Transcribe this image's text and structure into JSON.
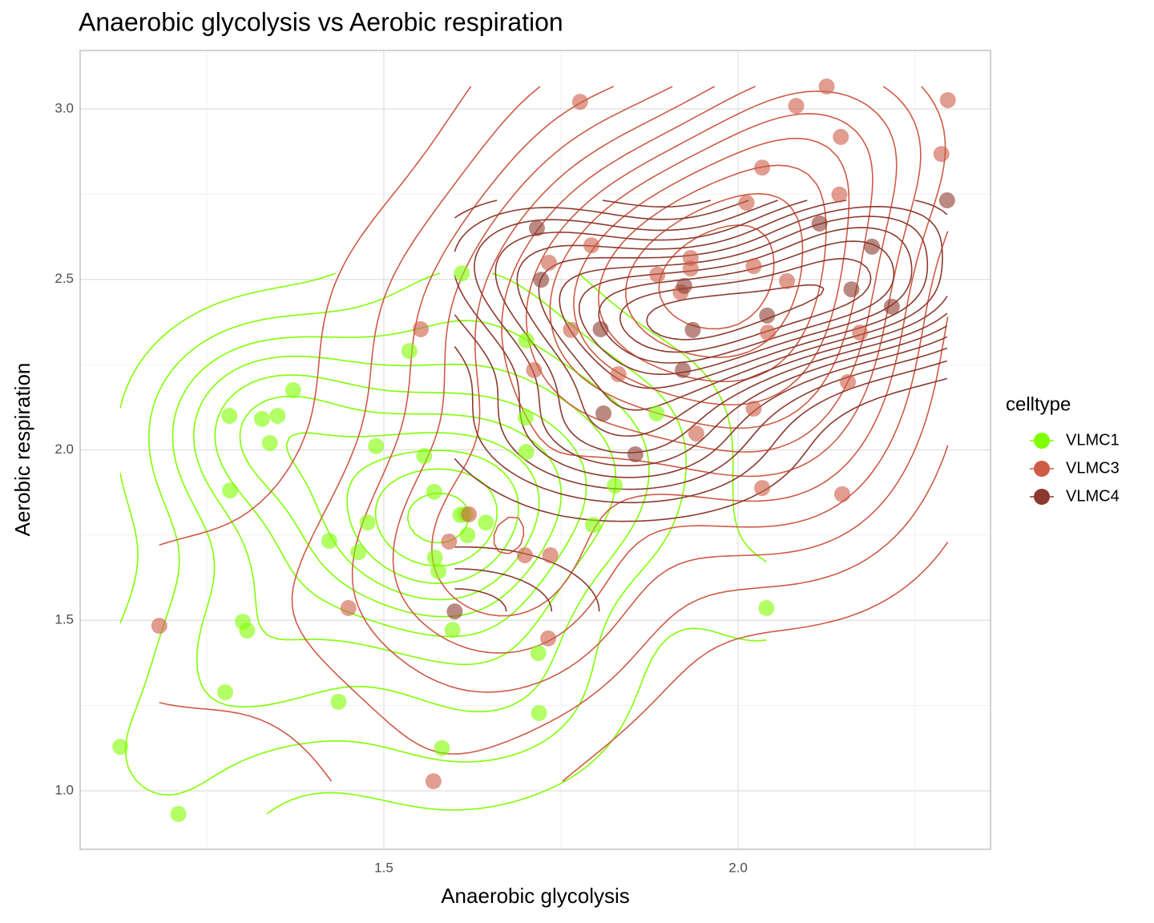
{
  "chart_data": {
    "type": "scatter",
    "title": "Anaerobic glycolysis vs Aerobic respiration",
    "x_label": "Anaerobic glycolysis",
    "y_label": "Aerobic respiration",
    "legend_title": "celltype",
    "legend_position": "right",
    "density_contours": true,
    "grid": true,
    "xlim": [
      1.0713,
      2.3563
    ],
    "ylim": [
      0.8284,
      3.1716
    ],
    "xticks": [
      1.5,
      {
        "value": 2,
        "label": "2.0"
      }
    ],
    "yticks": [
      {
        "value": 1,
        "label": "1.0"
      },
      1.5,
      {
        "value": 2,
        "label": "2.0"
      },
      2.5,
      {
        "value": 3,
        "label": "3.0"
      }
    ],
    "xminorticks": [
      1.25,
      1.75,
      2.25
    ],
    "yminorticks": [
      1.25,
      1.75,
      2.25,
      2.75
    ],
    "series": [
      {
        "name": "VLMC1",
        "color": "#7fff00",
        "x": [
          1.128,
          1.21,
          1.276,
          1.301,
          1.307,
          1.283,
          1.282,
          1.328,
          1.35,
          1.339,
          1.372,
          1.423,
          1.436,
          1.464,
          1.477,
          1.489,
          1.536,
          1.557,
          1.571,
          1.572,
          1.577,
          1.582,
          1.597,
          1.608,
          1.61,
          1.615,
          1.618,
          1.644,
          1.701,
          1.7,
          1.701,
          1.718,
          1.719,
          1.795,
          1.826,
          1.885,
          2.04
        ],
        "values": [
          1.129,
          0.932,
          1.289,
          1.496,
          1.47,
          1.881,
          2.1,
          2.091,
          2.1,
          2.02,
          2.175,
          1.733,
          1.261,
          1.7,
          1.787,
          2.011,
          2.29,
          1.982,
          1.877,
          1.684,
          1.644,
          1.125,
          1.472,
          1.809,
          2.518,
          1.811,
          1.75,
          1.787,
          2.321,
          2.095,
          1.994,
          1.404,
          1.228,
          1.78,
          1.895,
          2.107,
          1.536
        ]
      },
      {
        "name": "VLMC3",
        "color": "#cd5b45",
        "x": [
          1.183,
          1.45,
          1.552,
          1.57,
          1.592,
          1.62,
          1.699,
          1.735,
          1.732,
          1.712,
          1.733,
          1.764,
          1.777,
          1.793,
          1.831,
          1.886,
          1.919,
          1.933,
          1.933,
          1.941,
          2.012,
          2.022,
          2.034,
          2.034,
          2.022,
          2.042,
          2.069,
          2.082,
          2.125,
          2.143,
          2.145,
          2.155,
          2.147,
          2.172,
          2.287,
          2.296
        ],
        "values": [
          1.484,
          1.536,
          2.354,
          1.028,
          1.731,
          1.811,
          1.691,
          1.691,
          1.447,
          2.234,
          2.549,
          2.352,
          3.021,
          2.6,
          2.222,
          2.514,
          2.462,
          2.563,
          2.532,
          2.048,
          2.725,
          2.539,
          2.828,
          1.888,
          2.121,
          2.344,
          2.495,
          3.009,
          3.066,
          2.749,
          2.918,
          2.199,
          1.87,
          2.344,
          2.868,
          3.026
        ]
      },
      {
        "name": "VLMC4",
        "color": "#8b3a2f",
        "x": [
          1.6,
          1.716,
          1.722,
          1.806,
          1.81,
          1.855,
          1.922,
          1.924,
          1.936,
          2.041,
          2.115,
          2.16,
          2.189,
          2.217,
          2.295
        ],
        "values": [
          1.526,
          2.65,
          2.499,
          2.354,
          2.107,
          1.987,
          2.234,
          2.481,
          2.352,
          2.394,
          2.664,
          2.471,
          2.596,
          2.42,
          2.732
        ]
      }
    ]
  }
}
